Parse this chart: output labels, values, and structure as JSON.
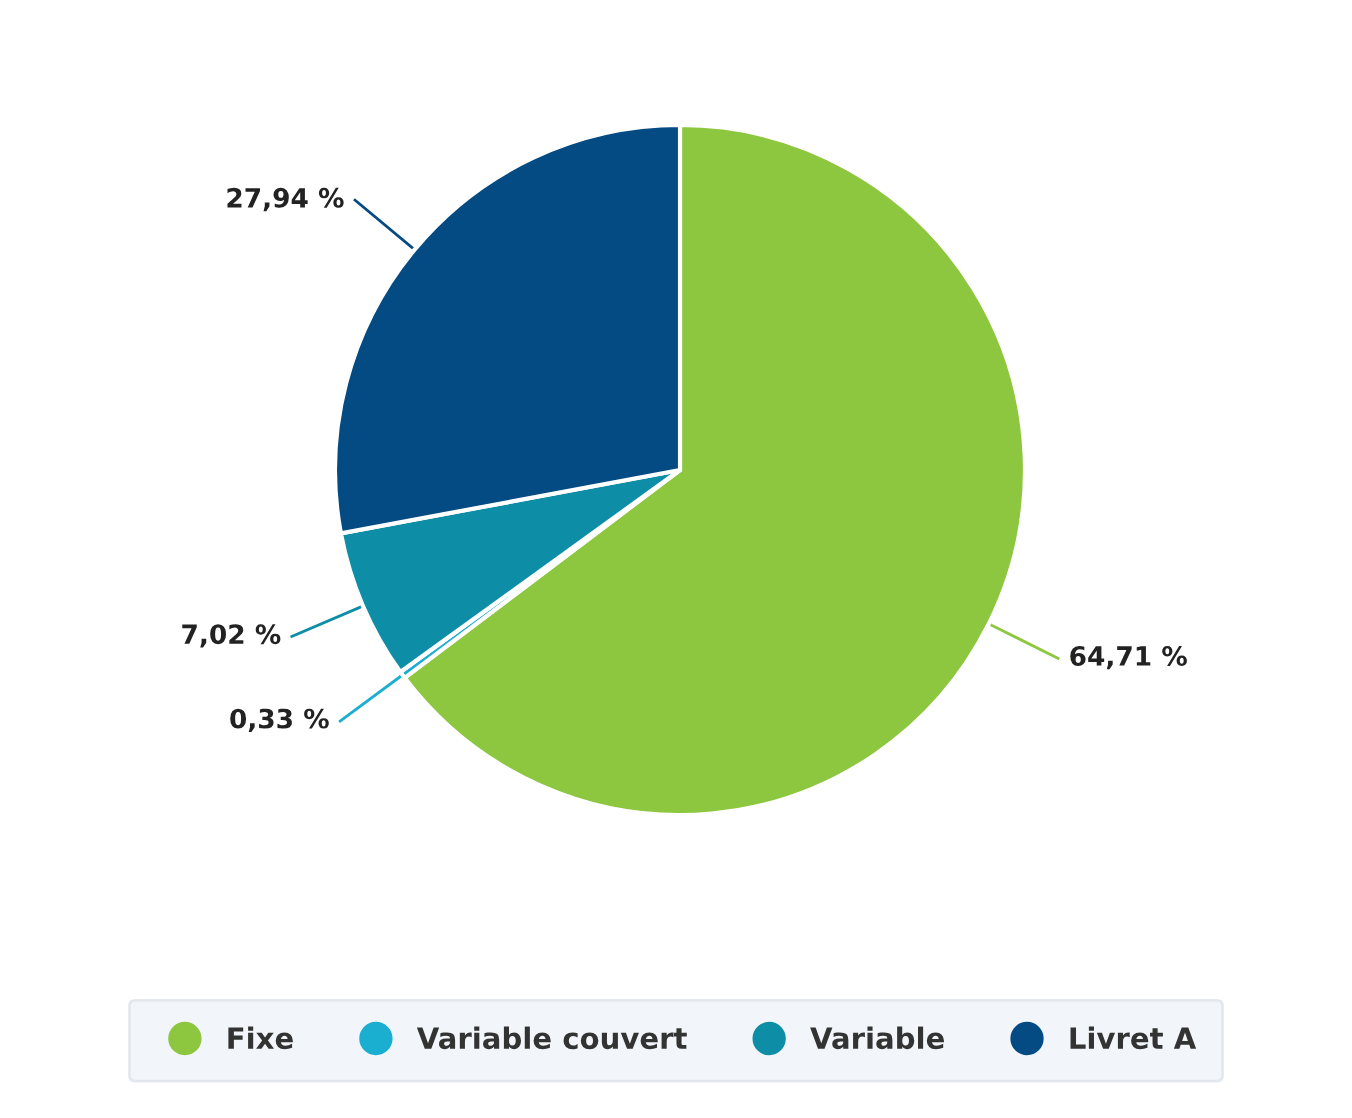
{
  "chart_data": {
    "type": "pie",
    "categories": [
      "Fixe",
      "Variable couvert",
      "Variable",
      "Livret A"
    ],
    "values": [
      64.71,
      0.33,
      7.02,
      27.94
    ],
    "value_labels": [
      "64,71 %",
      "0,33 %",
      "7,02 %",
      "27,94 %"
    ],
    "colors": [
      "#8dc63f",
      "#1aaed0",
      "#0e8ea6",
      "#044a83"
    ],
    "legend": "bottom"
  }
}
